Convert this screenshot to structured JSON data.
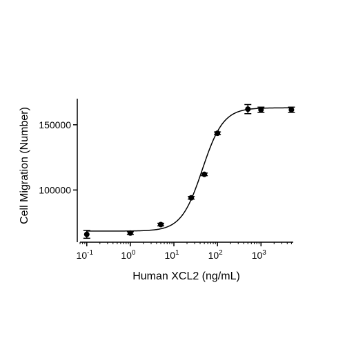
{
  "chart_data": {
    "type": "scatter",
    "title": "",
    "xlabel": "Human XCL2 (ng/mL)",
    "ylabel": "Cell Migration (Number)",
    "x_scale": "log10",
    "xlim": [
      0.07,
      5500
    ],
    "ylim": [
      60000,
      170000
    ],
    "grid": false,
    "legend": "none",
    "x_ticks": [
      {
        "value": 0.1,
        "base": "10",
        "exp": "-1"
      },
      {
        "value": 1,
        "base": "10",
        "exp": "0"
      },
      {
        "value": 10,
        "base": "10",
        "exp": "1"
      },
      {
        "value": 100,
        "base": "10",
        "exp": "2"
      },
      {
        "value": 1000,
        "base": "10",
        "exp": "3"
      }
    ],
    "y_ticks": [
      {
        "value": 100000,
        "label": "100000"
      },
      {
        "value": 150000,
        "label": "150000"
      }
    ],
    "series": [
      {
        "points": [
          {
            "x": 0.1,
            "y": 66000,
            "err": 3000
          },
          {
            "x": 1,
            "y": 67000,
            "err": 1000
          },
          {
            "x": 5,
            "y": 73500,
            "err": 1000
          },
          {
            "x": 25,
            "y": 94000,
            "err": 1000
          },
          {
            "x": 50,
            "y": 112000,
            "err": 1000
          },
          {
            "x": 100,
            "y": 143500,
            "err": 1000
          },
          {
            "x": 500,
            "y": 162000,
            "err": 3500
          },
          {
            "x": 1000,
            "y": 161500,
            "err": 2000
          },
          {
            "x": 5000,
            "y": 161500,
            "err": 2000
          }
        ],
        "fit": {
          "model": "4PL",
          "bottom": 68500,
          "top": 163000,
          "ec50": 45,
          "hill": 1.8
        }
      }
    ],
    "colors": {
      "axis": "#000000",
      "series": "#000000"
    }
  }
}
